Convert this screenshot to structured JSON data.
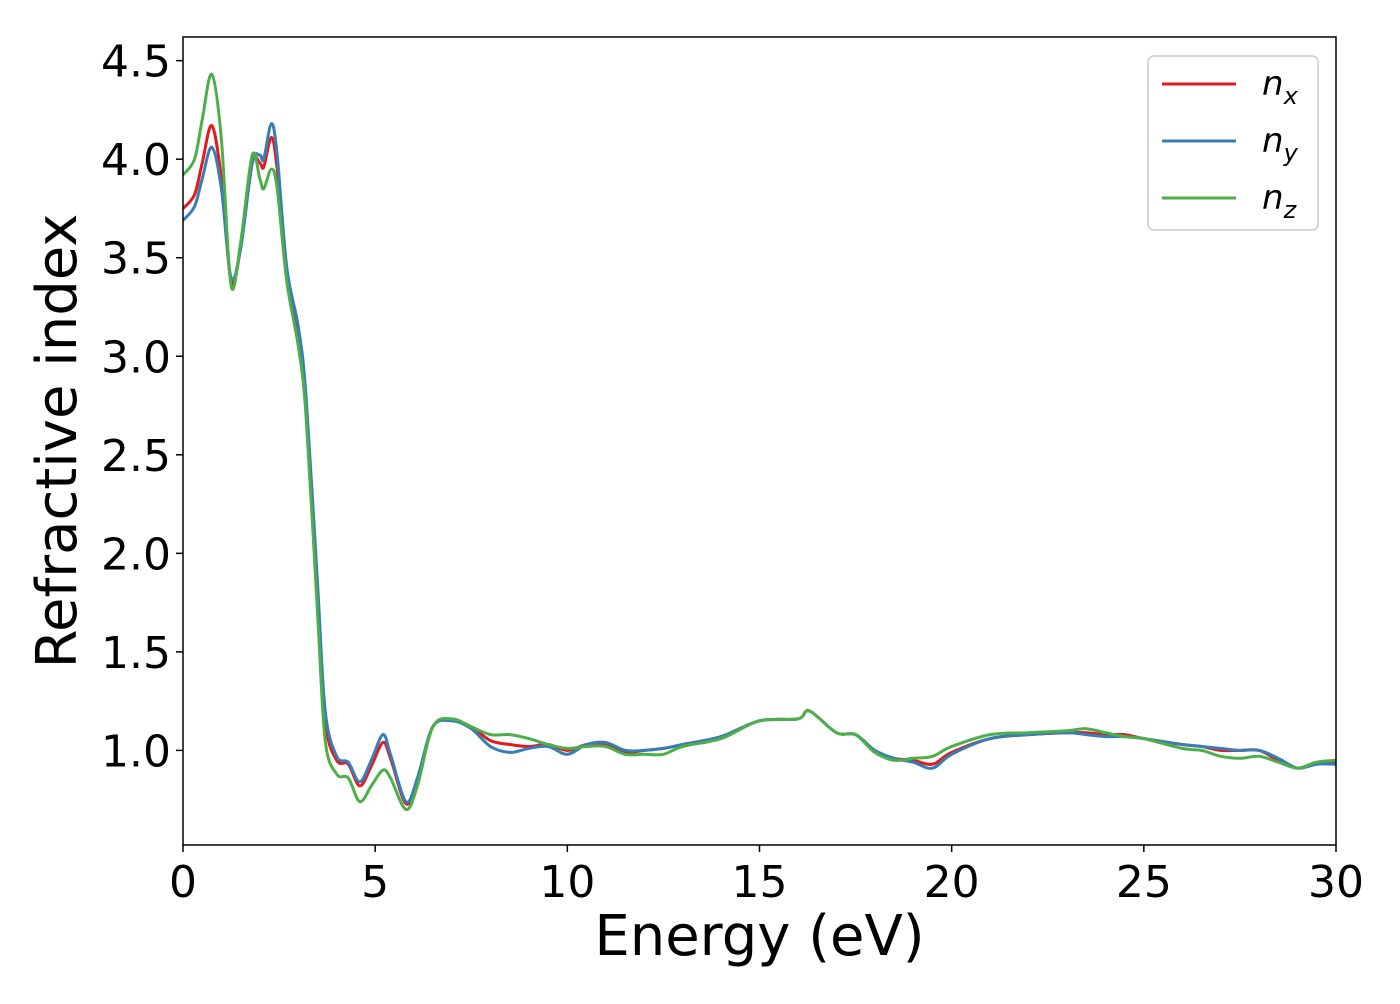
{
  "chart_data": {
    "type": "line",
    "xlabel": "Energy (eV)",
    "ylabel": "Refractive index",
    "xlim": [
      0,
      30
    ],
    "ylim": [
      0.52,
      4.62
    ],
    "xticks": [
      0,
      5,
      10,
      15,
      20,
      25,
      30
    ],
    "yticks": [
      1.0,
      1.5,
      2.0,
      2.5,
      3.0,
      3.5,
      4.0,
      4.5
    ],
    "grid": false,
    "legend_position": "top-right",
    "series": [
      {
        "name": "n_x",
        "legend_base": "n",
        "legend_sub": "x",
        "color": "#e41a1c",
        "points": [
          [
            0,
            3.75
          ],
          [
            0.3,
            3.82
          ],
          [
            0.5,
            3.98
          ],
          [
            0.75,
            4.17
          ],
          [
            1.0,
            3.9
          ],
          [
            1.25,
            3.38
          ],
          [
            1.5,
            3.55
          ],
          [
            1.8,
            3.98
          ],
          [
            2.0,
            3.98
          ],
          [
            2.1,
            3.96
          ],
          [
            2.3,
            4.11
          ],
          [
            2.45,
            3.95
          ],
          [
            2.7,
            3.42
          ],
          [
            3.0,
            3.1
          ],
          [
            3.2,
            2.75
          ],
          [
            3.5,
            1.8
          ],
          [
            3.7,
            1.15
          ],
          [
            4.0,
            0.95
          ],
          [
            4.3,
            0.93
          ],
          [
            4.6,
            0.82
          ],
          [
            4.9,
            0.92
          ],
          [
            5.2,
            1.04
          ],
          [
            5.4,
            0.96
          ],
          [
            5.8,
            0.73
          ],
          [
            6.1,
            0.85
          ],
          [
            6.5,
            1.12
          ],
          [
            7.0,
            1.15
          ],
          [
            7.5,
            1.12
          ],
          [
            8.0,
            1.05
          ],
          [
            8.5,
            1.03
          ],
          [
            9.0,
            1.02
          ],
          [
            9.5,
            1.03
          ],
          [
            10.0,
            1.0
          ],
          [
            10.5,
            1.03
          ],
          [
            11.0,
            1.03
          ],
          [
            11.5,
            0.99
          ],
          [
            12.0,
            1.0
          ],
          [
            12.5,
            1.01
          ],
          [
            13.0,
            1.03
          ],
          [
            14.0,
            1.07
          ],
          [
            15.0,
            1.15
          ],
          [
            16.0,
            1.16
          ],
          [
            16.3,
            1.2
          ],
          [
            17.0,
            1.09
          ],
          [
            17.5,
            1.08
          ],
          [
            18.0,
            1.0
          ],
          [
            18.5,
            0.96
          ],
          [
            19.0,
            0.95
          ],
          [
            19.5,
            0.93
          ],
          [
            20.0,
            0.99
          ],
          [
            21.0,
            1.06
          ],
          [
            22.0,
            1.08
          ],
          [
            23.0,
            1.09
          ],
          [
            23.5,
            1.09
          ],
          [
            24.0,
            1.08
          ],
          [
            24.5,
            1.08
          ],
          [
            25.0,
            1.06
          ],
          [
            26.0,
            1.03
          ],
          [
            26.5,
            1.02
          ],
          [
            27.0,
            1.0
          ],
          [
            27.5,
            1.0
          ],
          [
            28.0,
            1.0
          ],
          [
            28.5,
            0.95
          ],
          [
            29.0,
            0.91
          ],
          [
            29.5,
            0.94
          ],
          [
            30.0,
            0.94
          ]
        ]
      },
      {
        "name": "n_y",
        "legend_base": "n",
        "legend_sub": "y",
        "color": "#377eb8",
        "points": [
          [
            0,
            3.69
          ],
          [
            0.3,
            3.76
          ],
          [
            0.5,
            3.9
          ],
          [
            0.75,
            4.06
          ],
          [
            1.0,
            3.85
          ],
          [
            1.25,
            3.4
          ],
          [
            1.5,
            3.55
          ],
          [
            1.8,
            3.98
          ],
          [
            2.0,
            4.02
          ],
          [
            2.1,
            4.0
          ],
          [
            2.3,
            4.18
          ],
          [
            2.45,
            4.02
          ],
          [
            2.7,
            3.45
          ],
          [
            3.0,
            3.15
          ],
          [
            3.2,
            2.8
          ],
          [
            3.5,
            1.85
          ],
          [
            3.7,
            1.2
          ],
          [
            4.0,
            0.97
          ],
          [
            4.3,
            0.94
          ],
          [
            4.6,
            0.84
          ],
          [
            4.9,
            0.95
          ],
          [
            5.2,
            1.08
          ],
          [
            5.4,
            0.98
          ],
          [
            5.8,
            0.74
          ],
          [
            6.1,
            0.86
          ],
          [
            6.5,
            1.12
          ],
          [
            7.0,
            1.15
          ],
          [
            7.5,
            1.11
          ],
          [
            8.0,
            1.02
          ],
          [
            8.5,
            0.99
          ],
          [
            9.0,
            1.01
          ],
          [
            9.5,
            1.02
          ],
          [
            10.0,
            0.98
          ],
          [
            10.5,
            1.03
          ],
          [
            11.0,
            1.04
          ],
          [
            11.5,
            1.0
          ],
          [
            12.0,
            1.0
          ],
          [
            12.5,
            1.01
          ],
          [
            13.0,
            1.03
          ],
          [
            14.0,
            1.07
          ],
          [
            15.0,
            1.15
          ],
          [
            16.0,
            1.16
          ],
          [
            16.3,
            1.2
          ],
          [
            17.0,
            1.09
          ],
          [
            17.5,
            1.08
          ],
          [
            18.0,
            1.0
          ],
          [
            18.5,
            0.96
          ],
          [
            19.0,
            0.94
          ],
          [
            19.5,
            0.91
          ],
          [
            20.0,
            0.98
          ],
          [
            21.0,
            1.06
          ],
          [
            22.0,
            1.08
          ],
          [
            23.0,
            1.09
          ],
          [
            23.5,
            1.08
          ],
          [
            24.0,
            1.07
          ],
          [
            24.5,
            1.07
          ],
          [
            25.0,
            1.06
          ],
          [
            26.0,
            1.03
          ],
          [
            26.5,
            1.02
          ],
          [
            27.0,
            1.01
          ],
          [
            27.5,
            1.0
          ],
          [
            28.0,
            1.0
          ],
          [
            28.5,
            0.96
          ],
          [
            29.0,
            0.91
          ],
          [
            29.5,
            0.93
          ],
          [
            30.0,
            0.93
          ]
        ]
      },
      {
        "name": "n_z",
        "legend_base": "n",
        "legend_sub": "z",
        "color": "#4daf4a",
        "points": [
          [
            0,
            3.92
          ],
          [
            0.3,
            4.0
          ],
          [
            0.5,
            4.2
          ],
          [
            0.75,
            4.43
          ],
          [
            1.0,
            4.1
          ],
          [
            1.25,
            3.36
          ],
          [
            1.5,
            3.58
          ],
          [
            1.8,
            4.02
          ],
          [
            2.0,
            3.9
          ],
          [
            2.1,
            3.85
          ],
          [
            2.3,
            3.95
          ],
          [
            2.45,
            3.85
          ],
          [
            2.7,
            3.38
          ],
          [
            3.0,
            3.05
          ],
          [
            3.2,
            2.7
          ],
          [
            3.5,
            1.7
          ],
          [
            3.7,
            1.05
          ],
          [
            4.0,
            0.88
          ],
          [
            4.3,
            0.86
          ],
          [
            4.6,
            0.74
          ],
          [
            4.9,
            0.82
          ],
          [
            5.2,
            0.9
          ],
          [
            5.4,
            0.86
          ],
          [
            5.8,
            0.7
          ],
          [
            6.1,
            0.82
          ],
          [
            6.5,
            1.12
          ],
          [
            7.0,
            1.16
          ],
          [
            7.5,
            1.12
          ],
          [
            8.0,
            1.08
          ],
          [
            8.5,
            1.08
          ],
          [
            9.0,
            1.06
          ],
          [
            9.5,
            1.03
          ],
          [
            10.0,
            1.01
          ],
          [
            10.5,
            1.02
          ],
          [
            11.0,
            1.02
          ],
          [
            11.5,
            0.98
          ],
          [
            12.0,
            0.98
          ],
          [
            12.5,
            0.98
          ],
          [
            13.0,
            1.02
          ],
          [
            14.0,
            1.06
          ],
          [
            15.0,
            1.15
          ],
          [
            16.0,
            1.16
          ],
          [
            16.3,
            1.2
          ],
          [
            17.0,
            1.09
          ],
          [
            17.5,
            1.08
          ],
          [
            18.0,
            0.99
          ],
          [
            18.5,
            0.95
          ],
          [
            19.0,
            0.96
          ],
          [
            19.5,
            0.97
          ],
          [
            20.0,
            1.02
          ],
          [
            21.0,
            1.08
          ],
          [
            22.0,
            1.09
          ],
          [
            23.0,
            1.1
          ],
          [
            23.5,
            1.11
          ],
          [
            24.0,
            1.09
          ],
          [
            24.5,
            1.07
          ],
          [
            25.0,
            1.06
          ],
          [
            26.0,
            1.01
          ],
          [
            26.5,
            1.0
          ],
          [
            27.0,
            0.97
          ],
          [
            27.5,
            0.96
          ],
          [
            28.0,
            0.97
          ],
          [
            28.5,
            0.94
          ],
          [
            29.0,
            0.91
          ],
          [
            29.5,
            0.94
          ],
          [
            30.0,
            0.95
          ]
        ]
      }
    ]
  }
}
